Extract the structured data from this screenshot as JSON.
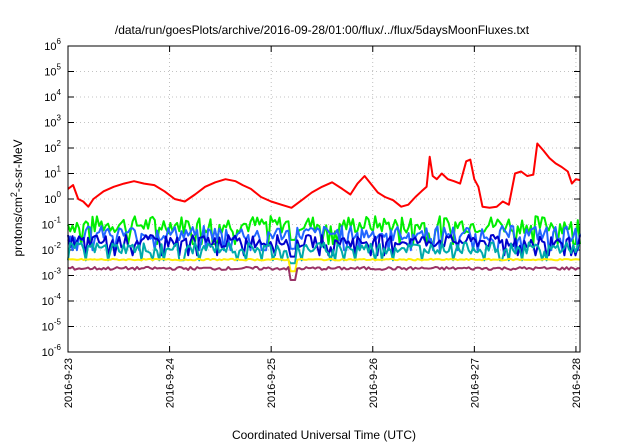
{
  "chart_data": {
    "type": "line",
    "title": "/data/run/goesPlots/archive/2016-09-28/01:00/flux/../flux/5daysMoonFluxes.txt",
    "xlabel": "Coordinated Universal Time (UTC)",
    "ylabel": "protons/cm2-s-sr-MeV",
    "ylabel_parts": {
      "pre": "protons/cm",
      "sup": "2",
      "post": "-s-sr-MeV"
    },
    "y_scale": "log",
    "ylim_exp": [
      -6,
      6
    ],
    "y_ticks": [
      {
        "base": "10",
        "exp": "-6",
        "e": -6
      },
      {
        "base": "10",
        "exp": "-5",
        "e": -5
      },
      {
        "base": "10",
        "exp": "-4",
        "e": -4
      },
      {
        "base": "10",
        "exp": "-3",
        "e": -3
      },
      {
        "base": "10",
        "exp": "-2",
        "e": -2
      },
      {
        "base": "10",
        "exp": "-1",
        "e": -1
      },
      {
        "base": "10",
        "exp": "0",
        "e": 0
      },
      {
        "base": "10",
        "exp": "1",
        "e": 1
      },
      {
        "base": "10",
        "exp": "2",
        "e": 2
      },
      {
        "base": "10",
        "exp": "3",
        "e": 3
      },
      {
        "base": "10",
        "exp": "4",
        "e": 4
      },
      {
        "base": "10",
        "exp": "5",
        "e": 5
      },
      {
        "base": "10",
        "exp": "6",
        "e": 6
      }
    ],
    "xlim_days": [
      2016.923,
      2016.928
    ],
    "x_ticks": [
      {
        "label": "2016-9-23",
        "day": 23
      },
      {
        "label": "2016-9-24",
        "day": 24
      },
      {
        "label": "2016-9-25",
        "day": 25
      },
      {
        "label": "2016-9-26",
        "day": 26
      },
      {
        "label": "2016-9-27",
        "day": 27
      },
      {
        "label": "2016-9-28",
        "day": 28
      }
    ],
    "x_range_days": [
      23.0,
      28.04
    ],
    "grid": true,
    "legend": "none",
    "series": [
      {
        "color": "#ff0000",
        "points": [
          [
            23.0,
            2.5
          ],
          [
            23.05,
            3.5
          ],
          [
            23.1,
            1.0
          ],
          [
            23.15,
            0.8
          ],
          [
            23.2,
            0.5
          ],
          [
            23.25,
            1.0
          ],
          [
            23.35,
            2.0
          ],
          [
            23.45,
            3.0
          ],
          [
            23.55,
            4.0
          ],
          [
            23.65,
            5.0
          ],
          [
            23.75,
            4.0
          ],
          [
            23.85,
            3.5
          ],
          [
            23.95,
            2.0
          ],
          [
            24.05,
            1.0
          ],
          [
            24.15,
            0.8
          ],
          [
            24.25,
            1.5
          ],
          [
            24.35,
            3.0
          ],
          [
            24.45,
            4.5
          ],
          [
            24.55,
            6.0
          ],
          [
            24.65,
            5.0
          ],
          [
            24.72,
            3.5
          ],
          [
            24.8,
            2.5
          ],
          [
            24.9,
            1.2
          ],
          [
            25.0,
            0.8
          ],
          [
            25.1,
            0.6
          ],
          [
            25.2,
            0.45
          ],
          [
            25.3,
            0.9
          ],
          [
            25.4,
            1.8
          ],
          [
            25.5,
            3.0
          ],
          [
            25.6,
            4.5
          ],
          [
            25.7,
            2.5
          ],
          [
            25.78,
            1.5
          ],
          [
            25.85,
            4.0
          ],
          [
            25.92,
            8.0
          ],
          [
            25.98,
            4.0
          ],
          [
            26.05,
            1.8
          ],
          [
            26.12,
            1.2
          ],
          [
            26.2,
            0.9
          ],
          [
            26.28,
            0.5
          ],
          [
            26.35,
            0.6
          ],
          [
            26.42,
            1.2
          ],
          [
            26.48,
            2.0
          ],
          [
            26.53,
            3.0
          ],
          [
            26.56,
            45.0
          ],
          [
            26.59,
            8.0
          ],
          [
            26.63,
            6.0
          ],
          [
            26.68,
            10.0
          ],
          [
            26.74,
            6.0
          ],
          [
            26.8,
            5.0
          ],
          [
            26.86,
            4.0
          ],
          [
            26.92,
            30.0
          ],
          [
            26.96,
            35.0
          ],
          [
            27.0,
            6.0
          ],
          [
            27.04,
            3.0
          ],
          [
            27.08,
            0.5
          ],
          [
            27.15,
            0.45
          ],
          [
            27.22,
            0.5
          ],
          [
            27.28,
            0.8
          ],
          [
            27.34,
            0.6
          ],
          [
            27.4,
            10.0
          ],
          [
            27.46,
            12.0
          ],
          [
            27.52,
            8.0
          ],
          [
            27.58,
            9.0
          ],
          [
            27.62,
            150.0
          ],
          [
            27.68,
            80.0
          ],
          [
            27.74,
            40.0
          ],
          [
            27.8,
            25.0
          ],
          [
            27.86,
            18.0
          ],
          [
            27.92,
            12.0
          ],
          [
            27.96,
            4.0
          ],
          [
            28.0,
            6.0
          ],
          [
            28.04,
            5.5
          ]
        ]
      },
      {
        "color": "#00ee00",
        "level": 0.1,
        "spread": 0.35
      },
      {
        "color": "#2266ff",
        "level": 0.045,
        "spread": 0.3
      },
      {
        "color": "#0000cc",
        "level": 0.022,
        "spread": 0.25
      },
      {
        "color": "#00aaaa",
        "level": 0.012,
        "spread": 0.22
      },
      {
        "color": "#ffee00",
        "level": 0.0042,
        "spread": 0.03
      },
      {
        "color": "#993366",
        "level": 0.0019,
        "spread": 0.06
      }
    ],
    "dip_day": 25.22
  }
}
